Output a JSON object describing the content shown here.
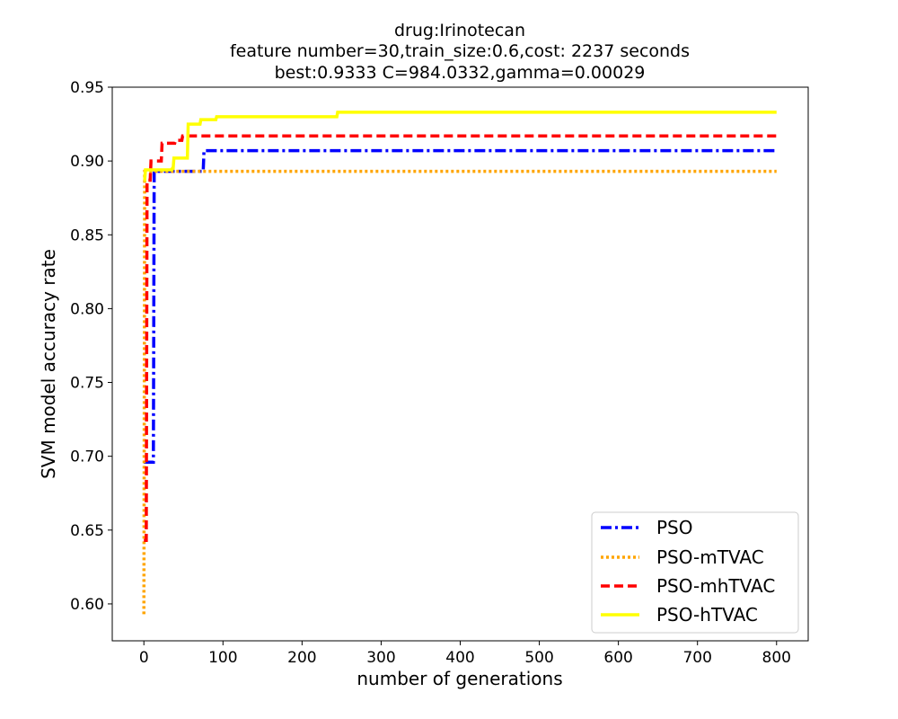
{
  "chart_data": {
    "type": "line",
    "title_lines": [
      "drug:Irinotecan",
      "feature number=30,train_size:0.6,cost: 2237 seconds",
      "best:0.9333  C=984.0332,gamma=0.00029"
    ],
    "xlabel": "number of generations",
    "ylabel": "SVM model accuracy rate",
    "xlim": [
      -40,
      840
    ],
    "ylim": [
      0.575,
      0.95
    ],
    "xticks": [
      0,
      100,
      200,
      300,
      400,
      500,
      600,
      700,
      800
    ],
    "yticks": [
      0.6,
      0.65,
      0.7,
      0.75,
      0.8,
      0.85,
      0.9,
      0.95
    ],
    "ytick_labels": [
      "0.60",
      "0.65",
      "0.70",
      "0.75",
      "0.80",
      "0.85",
      "0.90",
      "0.95"
    ],
    "legend": {
      "position": "lower-right"
    },
    "series": [
      {
        "name": "PSO",
        "color": "#0000ff",
        "style": "dashdot",
        "points": [
          [
            0,
            0.696
          ],
          [
            1,
            0.696
          ],
          [
            12,
            0.696
          ],
          [
            13,
            0.893
          ],
          [
            75,
            0.893
          ],
          [
            76,
            0.907
          ],
          [
            800,
            0.907
          ]
        ]
      },
      {
        "name": "PSO-mTVAC",
        "color": "#ffa500",
        "style": "dotted",
        "points": [
          [
            0,
            0.593
          ],
          [
            1,
            0.893
          ],
          [
            800,
            0.893
          ]
        ]
      },
      {
        "name": "PSO-mhTVAC",
        "color": "#ff0000",
        "style": "dashed",
        "points": [
          [
            0,
            0.643
          ],
          [
            3,
            0.643
          ],
          [
            4,
            0.887
          ],
          [
            8,
            0.887
          ],
          [
            9,
            0.9
          ],
          [
            22,
            0.9
          ],
          [
            23,
            0.912
          ],
          [
            39,
            0.912
          ],
          [
            40,
            0.914
          ],
          [
            48,
            0.914
          ],
          [
            49,
            0.917
          ],
          [
            800,
            0.917
          ]
        ]
      },
      {
        "name": "PSO-hTVAC",
        "color": "#ffff00",
        "style": "solid",
        "points": [
          [
            0,
            0.887
          ],
          [
            1,
            0.887
          ],
          [
            2,
            0.894
          ],
          [
            35,
            0.894
          ],
          [
            36,
            0.895
          ],
          [
            37,
            0.895
          ],
          [
            38,
            0.902
          ],
          [
            55,
            0.902
          ],
          [
            56,
            0.925
          ],
          [
            71,
            0.925
          ],
          [
            72,
            0.928
          ],
          [
            91,
            0.928
          ],
          [
            92,
            0.93
          ],
          [
            244,
            0.93
          ],
          [
            245,
            0.933
          ],
          [
            800,
            0.933
          ]
        ]
      }
    ]
  }
}
